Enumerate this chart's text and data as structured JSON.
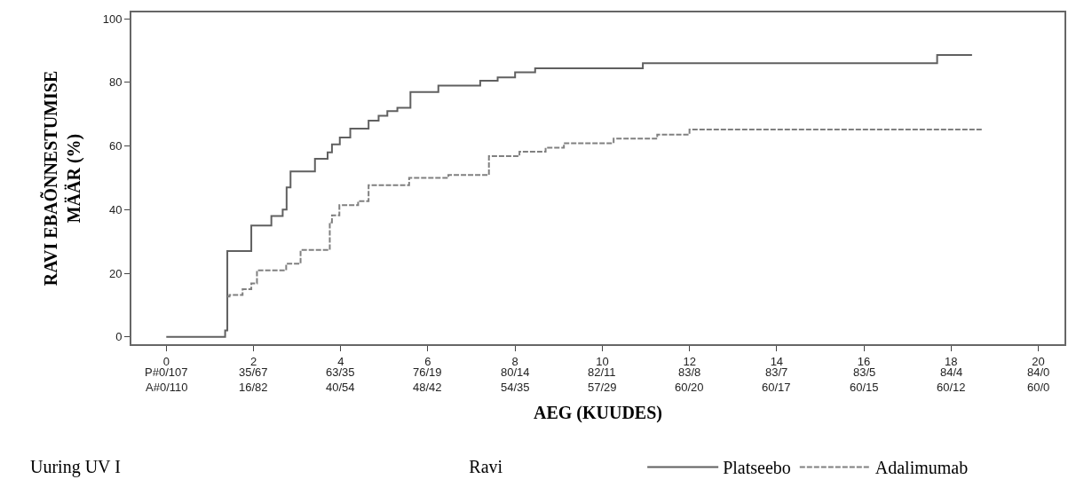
{
  "chart_data": {
    "type": "step",
    "xlabel": "AEG (KUUDES)",
    "ylabel": "RAVI EBAÕNNESTUMISE\nMÄÄR (%)",
    "legend_title": "Ravi",
    "annotations": [
      "Uuring UV I",
      "P#0/107",
      "35/67",
      "63/35",
      "76/19",
      "80/14",
      "82/11",
      "83/8",
      "83/7",
      "83/5",
      "84/4",
      "84/0",
      "A#0/110",
      "16/82",
      "40/54",
      "48/42",
      "54/35",
      "57/29",
      "60/20",
      "60/17",
      "60/15",
      "60/12",
      "60/0"
    ],
    "series": [
      {
        "name": "Platseebo",
        "color": "#606060",
        "line_style": "solid",
        "x": [
          0,
          1.35,
          1.4,
          1.88,
          1.95,
          2.41,
          2.67,
          2.76,
          2.85,
          3.41,
          3.7,
          3.8,
          3.98,
          4.22,
          4.64,
          4.87,
          5.07,
          5.3,
          5.6,
          6.24,
          6.47,
          7.2,
          7.6,
          8.0,
          8.46,
          10.93,
          17.68,
          18.48
        ],
        "values": [
          0,
          2,
          27,
          27,
          35,
          38,
          40,
          47,
          52,
          56,
          58,
          60.5,
          62.7,
          65.5,
          68,
          69.5,
          71,
          72,
          77,
          79,
          79,
          80.5,
          81.6,
          83.2,
          84.4,
          86,
          88.6,
          88.6
        ]
      },
      {
        "name": "Adalimumab",
        "color": "#808080",
        "line_style": "dashed",
        "x": [
          1.4,
          1.45,
          1.75,
          1.95,
          2.08,
          2.75,
          3.08,
          3.71,
          3.75,
          3.8,
          3.97,
          4.4,
          4.64,
          5.57,
          6.47,
          7.2,
          7.4,
          8.1,
          8.7,
          9.12,
          10.26,
          11.26,
          12.0,
          18.72
        ],
        "values": [
          12.7,
          13.2,
          15,
          16.8,
          20.9,
          23,
          27.3,
          27.3,
          36,
          38.2,
          41.4,
          42.7,
          47.7,
          50,
          50.9,
          50.9,
          56.8,
          58.2,
          59.5,
          60.9,
          62.3,
          63.6,
          65.2,
          65.2
        ]
      }
    ],
    "xlim": [
      -0.8,
      20.6
    ],
    "ylim": [
      -2.3,
      102
    ],
    "xticks": [
      0,
      2,
      4,
      6,
      8,
      10,
      12,
      14,
      16,
      18,
      20
    ],
    "yticks": [
      0,
      20,
      40,
      60,
      80,
      100
    ],
    "legend": "bottom"
  }
}
